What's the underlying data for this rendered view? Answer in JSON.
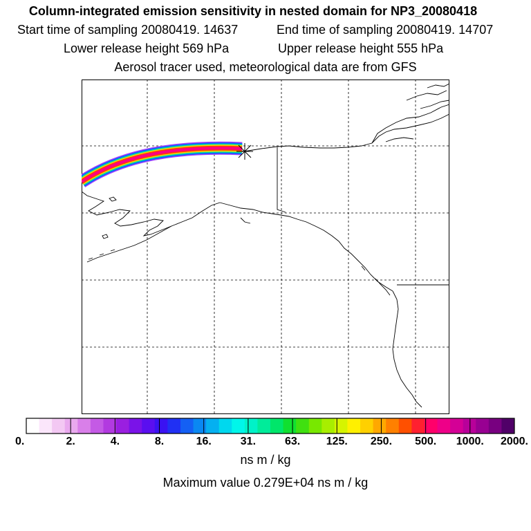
{
  "title": {
    "main": "Column-integrated emission sensitivity in nested domain for NP3_20080418",
    "start": "Start time of sampling 20080419. 14637",
    "end": "End time of sampling 20080419. 14707",
    "lower": "Lower release height  569 hPa",
    "upper": "Upper release height  555 hPa",
    "tracer": "Aerosol tracer used, meteorological data are from GFS"
  },
  "colorbar": {
    "tick_labels": [
      "0.",
      "2.",
      "4.",
      "8.",
      "16.",
      "31.",
      "63.",
      "125.",
      "250.",
      "500.",
      "1000.",
      "2000."
    ],
    "unit": "ns m / kg",
    "colors": [
      "#ffffff",
      "#fbe6fb",
      "#f3c8f3",
      "#e9a9ee",
      "#d97fe9",
      "#c45ae5",
      "#b23ae0",
      "#9a1fe0",
      "#7a13e8",
      "#5a0ff0",
      "#3a12f2",
      "#2030f4",
      "#1460f4",
      "#0a88f2",
      "#05b0f0",
      "#00d8ee",
      "#00f6ea",
      "#00f2c8",
      "#00ec9a",
      "#00e66a",
      "#10e030",
      "#40e010",
      "#78e800",
      "#a8ee00",
      "#d6f400",
      "#fff000",
      "#ffd000",
      "#ffa800",
      "#ff8000",
      "#ff5000",
      "#ff2030",
      "#ff006a",
      "#ee0088",
      "#d40096",
      "#b8009a",
      "#980092",
      "#780080",
      "#500068"
    ]
  },
  "max_value": "Maximum value  0.279E+04 ns m / kg",
  "map": {
    "grid": true,
    "release_marker": "release-point",
    "plume_colors": [
      "#ff0080",
      "#ff4000",
      "#ffd000",
      "#00e0a0",
      "#0060ff",
      "#a040ff"
    ]
  }
}
